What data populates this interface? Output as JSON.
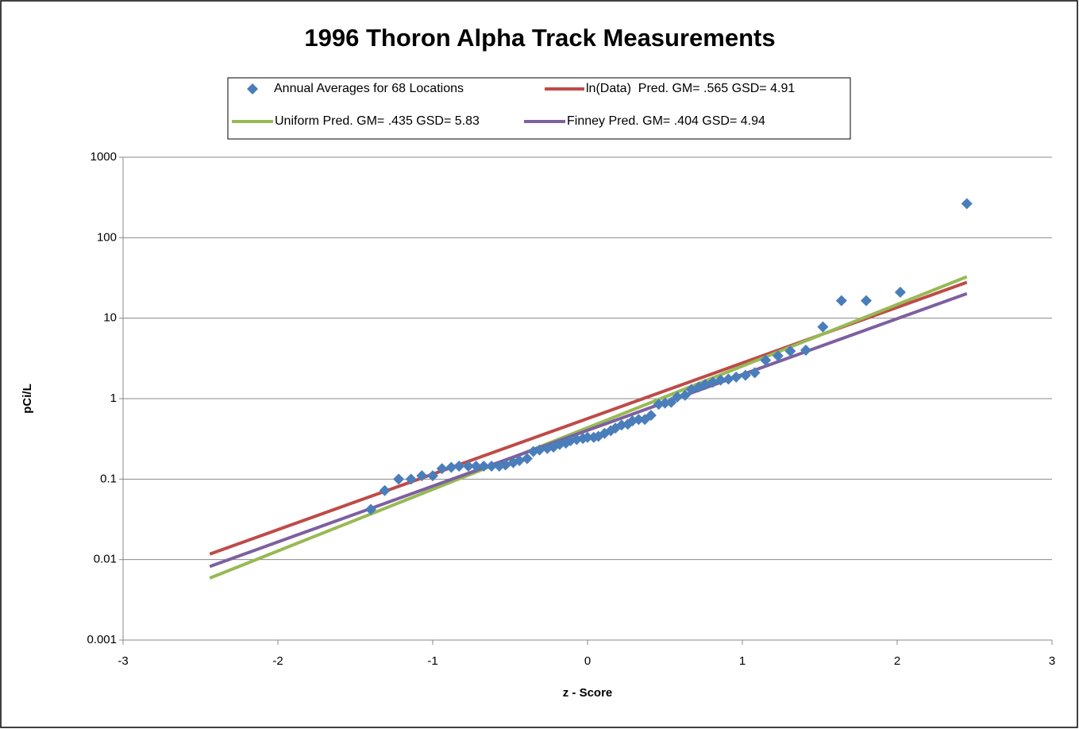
{
  "chart_data": {
    "type": "scatter",
    "title": "1996 Thoron Alpha Track Measurements",
    "x_label": "z - Score",
    "y_label": "pCi/L",
    "xlim": [
      -3,
      3
    ],
    "xticks": [
      -3,
      -2,
      -1,
      0,
      1,
      2,
      3
    ],
    "ylim": [
      0.001,
      1000
    ],
    "yticks": [
      0.001,
      0.01,
      0.1,
      1,
      10,
      100,
      1000
    ],
    "ylog": true,
    "grid": true,
    "series": [
      {
        "name": "Annual Averages for 68 Locations",
        "type": "scatter",
        "color": "#4a7ebb",
        "x": [
          -1.4,
          -1.31,
          -1.22,
          -1.14,
          -1.07,
          -1.0,
          -0.94,
          -0.88,
          -0.83,
          -0.77,
          -0.72,
          -0.67,
          -0.62,
          -0.57,
          -0.53,
          -0.48,
          -0.44,
          -0.39,
          -0.35,
          -0.31,
          -0.26,
          -0.22,
          -0.18,
          -0.14,
          -0.11,
          -0.07,
          -0.03,
          0.0,
          0.04,
          0.07,
          0.11,
          0.15,
          0.18,
          0.22,
          0.26,
          0.29,
          0.33,
          0.37,
          0.41,
          0.46,
          0.5,
          0.54,
          0.58,
          0.63,
          0.67,
          0.72,
          0.76,
          0.81,
          0.86,
          0.91,
          0.96,
          1.02,
          1.08,
          1.15,
          1.23,
          1.31,
          1.41,
          1.52,
          1.64,
          1.8,
          2.02,
          2.45
        ],
        "values": [
          0.042,
          0.072,
          0.1,
          0.1,
          0.11,
          0.11,
          0.135,
          0.14,
          0.145,
          0.145,
          0.145,
          0.145,
          0.145,
          0.145,
          0.15,
          0.16,
          0.17,
          0.18,
          0.22,
          0.23,
          0.24,
          0.25,
          0.27,
          0.28,
          0.3,
          0.31,
          0.32,
          0.33,
          0.33,
          0.34,
          0.37,
          0.4,
          0.43,
          0.47,
          0.48,
          0.53,
          0.55,
          0.55,
          0.62,
          0.85,
          0.88,
          0.9,
          1.05,
          1.1,
          1.3,
          1.4,
          1.5,
          1.6,
          1.7,
          1.75,
          1.85,
          1.95,
          2.1,
          3.0,
          3.4,
          3.9,
          4.0,
          7.8,
          16.5,
          16.5,
          21,
          265
        ]
      },
      {
        "name": "ln(Data)  Pred. GM= .565 GSD= 4.91",
        "type": "line",
        "color": "#be4b48",
        "x": [
          -2.44,
          0,
          2.45
        ],
        "values": [
          0.0117,
          0.565,
          27.9
        ]
      },
      {
        "name": "Uniform Pred. GM= .435 GSD= 5.83",
        "type": "line",
        "color": "#98b954",
        "x": [
          -2.44,
          0,
          2.45
        ],
        "values": [
          0.00589,
          0.435,
          32.7
        ]
      },
      {
        "name": "Finney Pred. GM= .404 GSD= 4.94",
        "type": "line",
        "color": "#7d60a0",
        "x": [
          -2.44,
          0,
          2.45
        ],
        "values": [
          0.0082,
          0.404,
          20.2
        ]
      }
    ]
  }
}
